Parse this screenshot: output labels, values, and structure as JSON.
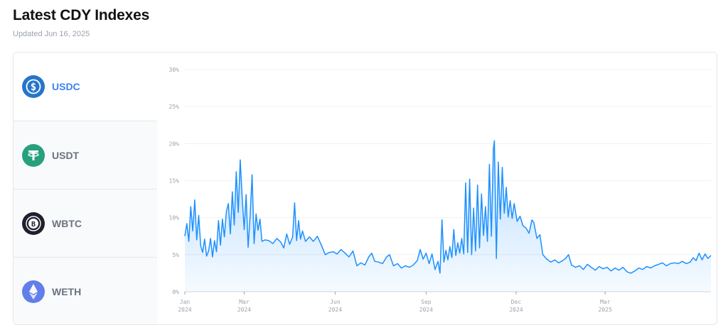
{
  "header": {
    "title": "Latest CDY Indexes",
    "updated": "Updated Jun 16, 2025"
  },
  "tokens": [
    {
      "label": "USDC",
      "icon": "usdc-icon",
      "color": "#2775ca",
      "active": true
    },
    {
      "label": "USDT",
      "icon": "usdt-icon",
      "color": "#26a17b",
      "active": false
    },
    {
      "label": "WBTC",
      "icon": "wbtc-icon",
      "color": "#1f1f2e",
      "active": false
    },
    {
      "label": "WETH",
      "icon": "weth-icon",
      "color": "#627eea",
      "active": false
    }
  ],
  "chart_data": {
    "type": "area",
    "title": "",
    "xlabel": "",
    "ylabel": "",
    "ylim": [
      0,
      30
    ],
    "yticks": [
      "0%",
      "5%",
      "10%",
      "15%",
      "20%",
      "25%",
      "30%"
    ],
    "yticks_values": [
      0,
      5,
      10,
      15,
      20,
      25,
      30
    ],
    "xticks": [
      {
        "month": "Jan",
        "year": "2024",
        "x": "2024-01-01"
      },
      {
        "month": "Mar",
        "year": "2024",
        "x": "2024-03-01"
      },
      {
        "month": "Jun",
        "year": "2024",
        "x": "2024-06-01"
      },
      {
        "month": "Sep",
        "year": "2024",
        "x": "2024-09-01"
      },
      {
        "month": "Dec",
        "year": "2024",
        "x": "2024-12-01"
      },
      {
        "month": "Mar",
        "year": "2025",
        "x": "2025-03-01"
      }
    ],
    "x_range": [
      "2024-01-01",
      "2025-06-16"
    ],
    "grid": true,
    "color": "#1e90ff",
    "series": [
      {
        "points": [
          [
            "2024-01-01",
            7.5
          ],
          [
            "2024-01-03",
            9.2
          ],
          [
            "2024-01-05",
            6.8
          ],
          [
            "2024-01-07",
            11.5
          ],
          [
            "2024-01-09",
            8.2
          ],
          [
            "2024-01-11",
            12.4
          ],
          [
            "2024-01-13",
            7.0
          ],
          [
            "2024-01-15",
            10.3
          ],
          [
            "2024-01-17",
            6.2
          ],
          [
            "2024-01-19",
            5.3
          ],
          [
            "2024-01-21",
            7.1
          ],
          [
            "2024-01-23",
            4.8
          ],
          [
            "2024-01-25",
            5.5
          ],
          [
            "2024-01-27",
            7.2
          ],
          [
            "2024-01-29",
            4.7
          ],
          [
            "2024-01-31",
            6.9
          ],
          [
            "2024-02-02",
            5.4
          ],
          [
            "2024-02-04",
            9.6
          ],
          [
            "2024-02-06",
            6.3
          ],
          [
            "2024-02-08",
            9.8
          ],
          [
            "2024-02-10",
            7.4
          ],
          [
            "2024-02-12",
            10.8
          ],
          [
            "2024-02-14",
            11.9
          ],
          [
            "2024-02-16",
            7.8
          ],
          [
            "2024-02-18",
            13.5
          ],
          [
            "2024-02-20",
            9.0
          ],
          [
            "2024-02-22",
            16.2
          ],
          [
            "2024-02-24",
            10.7
          ],
          [
            "2024-02-26",
            17.8
          ],
          [
            "2024-02-28",
            12.6
          ],
          [
            "2024-03-01",
            8.4
          ],
          [
            "2024-03-03",
            13.1
          ],
          [
            "2024-03-05",
            6.0
          ],
          [
            "2024-03-07",
            10.2
          ],
          [
            "2024-03-09",
            15.8
          ],
          [
            "2024-03-11",
            6.5
          ],
          [
            "2024-03-13",
            10.5
          ],
          [
            "2024-03-15",
            8.3
          ],
          [
            "2024-03-17",
            9.8
          ],
          [
            "2024-03-19",
            6.8
          ],
          [
            "2024-03-22",
            7.0
          ],
          [
            "2024-03-26",
            6.9
          ],
          [
            "2024-03-30",
            6.5
          ],
          [
            "2024-04-03",
            7.2
          ],
          [
            "2024-04-07",
            6.7
          ],
          [
            "2024-04-10",
            5.9
          ],
          [
            "2024-04-13",
            7.8
          ],
          [
            "2024-04-16",
            6.4
          ],
          [
            "2024-04-19",
            7.4
          ],
          [
            "2024-04-21",
            12.0
          ],
          [
            "2024-04-23",
            6.9
          ],
          [
            "2024-04-25",
            9.6
          ],
          [
            "2024-04-27",
            7.1
          ],
          [
            "2024-04-29",
            8.2
          ],
          [
            "2024-05-02",
            6.8
          ],
          [
            "2024-05-06",
            7.4
          ],
          [
            "2024-05-10",
            6.8
          ],
          [
            "2024-05-14",
            7.5
          ],
          [
            "2024-05-18",
            6.3
          ],
          [
            "2024-05-22",
            5.0
          ],
          [
            "2024-05-26",
            5.3
          ],
          [
            "2024-05-30",
            5.4
          ],
          [
            "2024-06-03",
            5.1
          ],
          [
            "2024-06-07",
            5.7
          ],
          [
            "2024-06-11",
            5.2
          ],
          [
            "2024-06-15",
            4.7
          ],
          [
            "2024-06-19",
            5.5
          ],
          [
            "2024-06-23",
            3.5
          ],
          [
            "2024-06-27",
            3.9
          ],
          [
            "2024-07-01",
            3.6
          ],
          [
            "2024-07-05",
            4.7
          ],
          [
            "2024-07-08",
            5.2
          ],
          [
            "2024-07-11",
            4.1
          ],
          [
            "2024-07-15",
            4.0
          ],
          [
            "2024-07-19",
            3.8
          ],
          [
            "2024-07-23",
            4.7
          ],
          [
            "2024-07-26",
            5.0
          ],
          [
            "2024-07-30",
            3.5
          ],
          [
            "2024-08-03",
            3.8
          ],
          [
            "2024-08-07",
            3.2
          ],
          [
            "2024-08-11",
            3.5
          ],
          [
            "2024-08-15",
            3.3
          ],
          [
            "2024-08-19",
            3.6
          ],
          [
            "2024-08-23",
            4.2
          ],
          [
            "2024-08-26",
            5.7
          ],
          [
            "2024-08-29",
            4.4
          ],
          [
            "2024-09-01",
            5.2
          ],
          [
            "2024-09-04",
            3.8
          ],
          [
            "2024-09-07",
            5.1
          ],
          [
            "2024-09-10",
            3.0
          ],
          [
            "2024-09-13",
            4.1
          ],
          [
            "2024-09-15",
            2.5
          ],
          [
            "2024-09-17",
            9.7
          ],
          [
            "2024-09-19",
            4.0
          ],
          [
            "2024-09-21",
            5.6
          ],
          [
            "2024-09-23",
            4.3
          ],
          [
            "2024-09-25",
            6.1
          ],
          [
            "2024-09-27",
            4.6
          ],
          [
            "2024-09-29",
            8.4
          ],
          [
            "2024-10-01",
            4.9
          ],
          [
            "2024-10-03",
            6.6
          ],
          [
            "2024-10-05",
            5.2
          ],
          [
            "2024-10-07",
            7.2
          ],
          [
            "2024-10-09",
            5.1
          ],
          [
            "2024-10-11",
            14.7
          ],
          [
            "2024-10-13",
            5.3
          ],
          [
            "2024-10-15",
            15.2
          ],
          [
            "2024-10-17",
            5.0
          ],
          [
            "2024-10-19",
            11.3
          ],
          [
            "2024-10-21",
            5.5
          ],
          [
            "2024-10-23",
            14.4
          ],
          [
            "2024-10-25",
            5.9
          ],
          [
            "2024-10-27",
            13.2
          ],
          [
            "2024-10-29",
            7.6
          ],
          [
            "2024-10-31",
            11.5
          ],
          [
            "2024-11-02",
            6.8
          ],
          [
            "2024-11-04",
            17.2
          ],
          [
            "2024-11-06",
            7.5
          ],
          [
            "2024-11-08",
            19.3
          ],
          [
            "2024-11-09",
            20.4
          ],
          [
            "2024-11-11",
            4.5
          ],
          [
            "2024-11-13",
            17.5
          ],
          [
            "2024-11-15",
            9.8
          ],
          [
            "2024-11-17",
            16.8
          ],
          [
            "2024-11-19",
            10.6
          ],
          [
            "2024-11-21",
            14.1
          ],
          [
            "2024-11-23",
            10.1
          ],
          [
            "2024-11-25",
            12.3
          ],
          [
            "2024-11-27",
            9.9
          ],
          [
            "2024-11-29",
            11.9
          ],
          [
            "2024-12-02",
            9.5
          ],
          [
            "2024-12-05",
            10.2
          ],
          [
            "2024-12-08",
            8.9
          ],
          [
            "2024-12-11",
            8.6
          ],
          [
            "2024-12-14",
            7.9
          ],
          [
            "2024-12-17",
            9.7
          ],
          [
            "2024-12-19",
            9.3
          ],
          [
            "2024-12-22",
            7.2
          ],
          [
            "2024-12-25",
            7.7
          ],
          [
            "2024-12-28",
            5.0
          ],
          [
            "2025-01-01",
            4.4
          ],
          [
            "2025-01-05",
            4.0
          ],
          [
            "2025-01-09",
            4.3
          ],
          [
            "2025-01-13",
            3.9
          ],
          [
            "2025-01-17",
            4.2
          ],
          [
            "2025-01-20",
            4.5
          ],
          [
            "2025-01-23",
            5.0
          ],
          [
            "2025-01-26",
            3.6
          ],
          [
            "2025-01-30",
            3.3
          ],
          [
            "2025-02-03",
            3.5
          ],
          [
            "2025-02-07",
            3.0
          ],
          [
            "2025-02-11",
            3.7
          ],
          [
            "2025-02-15",
            3.3
          ],
          [
            "2025-02-19",
            2.9
          ],
          [
            "2025-02-23",
            3.4
          ],
          [
            "2025-02-27",
            3.1
          ],
          [
            "2025-03-03",
            3.3
          ],
          [
            "2025-03-07",
            2.8
          ],
          [
            "2025-03-11",
            3.2
          ],
          [
            "2025-03-15",
            2.9
          ],
          [
            "2025-03-19",
            3.3
          ],
          [
            "2025-03-23",
            2.7
          ],
          [
            "2025-03-27",
            2.5
          ],
          [
            "2025-03-31",
            2.8
          ],
          [
            "2025-04-04",
            3.2
          ],
          [
            "2025-04-08",
            3.0
          ],
          [
            "2025-04-12",
            3.4
          ],
          [
            "2025-04-16",
            3.2
          ],
          [
            "2025-04-20",
            3.5
          ],
          [
            "2025-04-24",
            3.7
          ],
          [
            "2025-04-28",
            3.9
          ],
          [
            "2025-05-02",
            3.5
          ],
          [
            "2025-05-06",
            3.8
          ],
          [
            "2025-05-10",
            3.9
          ],
          [
            "2025-05-14",
            3.8
          ],
          [
            "2025-05-18",
            4.1
          ],
          [
            "2025-05-22",
            3.8
          ],
          [
            "2025-05-26",
            4.0
          ],
          [
            "2025-05-29",
            4.6
          ],
          [
            "2025-06-01",
            4.2
          ],
          [
            "2025-06-04",
            5.2
          ],
          [
            "2025-06-07",
            4.3
          ],
          [
            "2025-06-10",
            5.1
          ],
          [
            "2025-06-13",
            4.5
          ],
          [
            "2025-06-16",
            4.9
          ]
        ]
      }
    ]
  }
}
